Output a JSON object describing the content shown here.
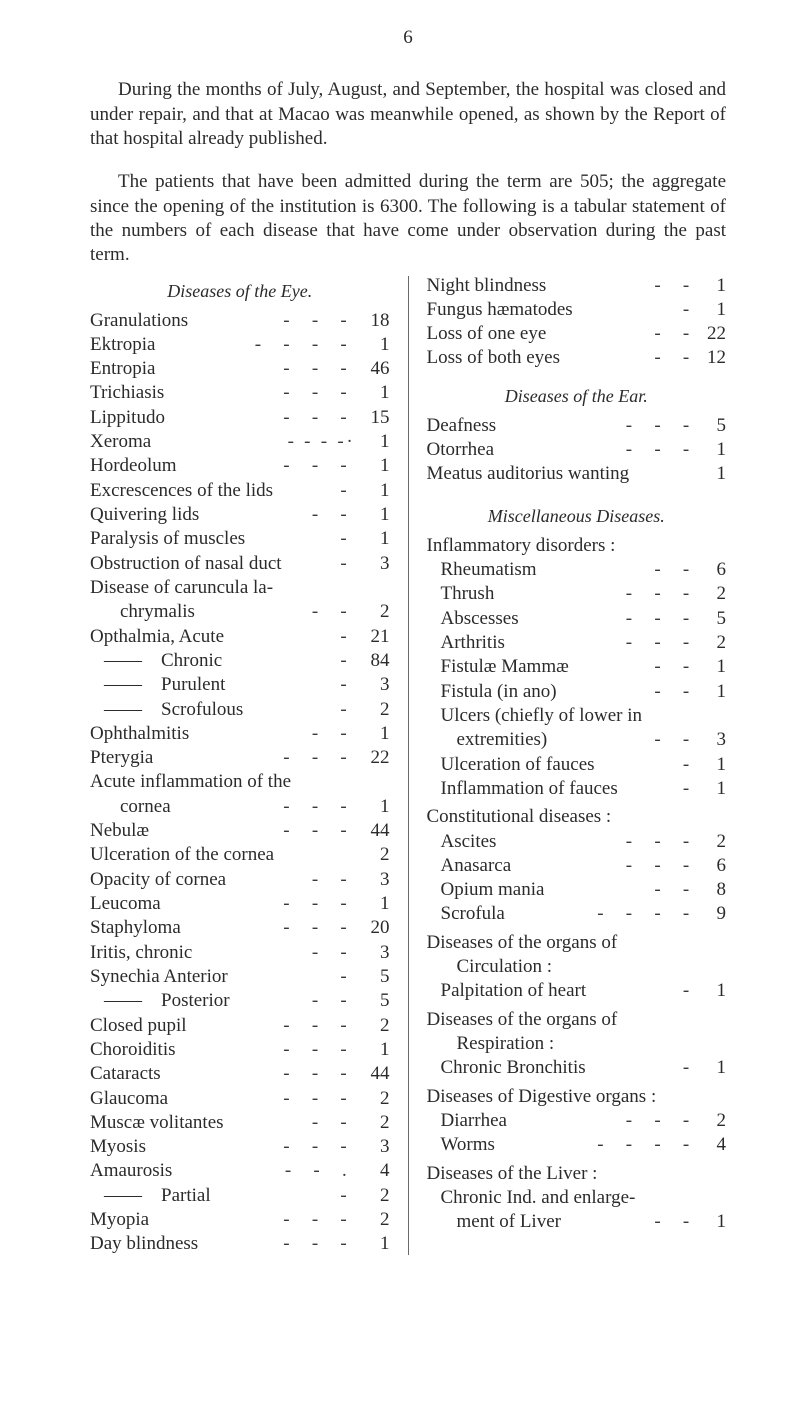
{
  "page_number": "6",
  "paragraphs": [
    "During the months of July, August, and September, the hospital was closed and under repair, and that at Macao was meanwhile opened, as shown by the Report of that hospital already published.",
    "The patients that have been admitted during the term are 505; the aggregate since the opening of the institution is 6300. The following is a tabular statement of the numbers of each disease that have come under observation during the past term."
  ],
  "left": {
    "title": "Diseases of the Eye.",
    "items": [
      {
        "label": "Granulations",
        "dashes": "-   -   -",
        "value": "18"
      },
      {
        "label": "Ektropia",
        "dashes": "-   -   -   -",
        "value": "1"
      },
      {
        "label": "Entropia",
        "dashes": "-   -   -",
        "value": "46"
      },
      {
        "label": "Trichiasis",
        "dashes": "-   -   -",
        "value": "1"
      },
      {
        "label": "Lippitudo",
        "dashes": "-   -   -",
        "value": "15"
      },
      {
        "label": "Xeroma",
        "dashes": "-   -   -   - ·",
        "value": "1"
      },
      {
        "label": "Hordeolum",
        "dashes": "-   -   -",
        "value": "1"
      },
      {
        "label": "Excrescences of the lids",
        "dashes": "-",
        "value": "1"
      },
      {
        "label": "Quivering lids",
        "dashes": "-   -",
        "value": "1"
      },
      {
        "label": "Paralysis of muscles",
        "dashes": "-",
        "value": "1"
      },
      {
        "label": "Obstruction of nasal duct",
        "dashes": "-",
        "value": "3"
      },
      {
        "label": "Disease of caruncula la-",
        "dashes": "",
        "value": ""
      },
      {
        "label": "chrymalis",
        "dashes": "-   -",
        "value": "2",
        "indent": 1
      },
      {
        "label": "Opthalmia, Acute",
        "dashes": "-",
        "value": "21"
      },
      {
        "label": "——    Chronic",
        "dashes": "-",
        "value": "84",
        "indent": 2
      },
      {
        "label": "——    Purulent",
        "dashes": "-",
        "value": "3",
        "indent": 2
      },
      {
        "label": "——    Scrofulous",
        "dashes": "-",
        "value": "2",
        "indent": 2
      },
      {
        "label": "Ophthalmitis",
        "dashes": "-   -",
        "value": "1"
      },
      {
        "label": "Pterygia",
        "dashes": "-   -   -",
        "value": "22"
      },
      {
        "label": "Acute inflammation of the",
        "dashes": "",
        "value": ""
      },
      {
        "label": "cornea",
        "dashes": "-   -   -",
        "value": "1",
        "indent": 1
      },
      {
        "label": "Nebulæ",
        "dashes": "-   -   -",
        "value": "44"
      },
      {
        "label": "Ulceration of the cornea",
        "dashes": "",
        "value": "2"
      },
      {
        "label": "Opacity of cornea",
        "dashes": "-   -",
        "value": "3"
      },
      {
        "label": "Leucoma",
        "dashes": "-   -   -",
        "value": "1"
      },
      {
        "label": "Staphyloma",
        "dashes": "-   -   -",
        "value": "20"
      },
      {
        "label": "Iritis, chronic",
        "dashes": "-   -",
        "value": "3"
      },
      {
        "label": "Synechia Anterior",
        "dashes": "-",
        "value": "5"
      },
      {
        "label": "——    Posterior",
        "dashes": "-   -",
        "value": "5",
        "indent": 2
      },
      {
        "label": "Closed pupil",
        "dashes": "-   -   -",
        "value": "2"
      },
      {
        "label": "Choroiditis",
        "dashes": "-   -   -",
        "value": "1"
      },
      {
        "label": "Cataracts",
        "dashes": "-   -   -",
        "value": "44"
      },
      {
        "label": "Glaucoma",
        "dashes": "-   -   -",
        "value": "2"
      },
      {
        "label": "Muscæ volitantes",
        "dashes": "-   -",
        "value": "2"
      },
      {
        "label": "Myosis",
        "dashes": "-   -   -",
        "value": "3"
      },
      {
        "label": "Amaurosis",
        "dashes": "-   -   .",
        "value": "4"
      },
      {
        "label": "——    Partial",
        "dashes": "-",
        "value": "2",
        "indent": 2
      },
      {
        "label": "Myopia",
        "dashes": "-   -   -",
        "value": "2"
      },
      {
        "label": "Day blindness",
        "dashes": "-   -   -",
        "value": "1"
      }
    ]
  },
  "right": {
    "pre_items": [
      {
        "label": "Night blindness",
        "dashes": "-   -",
        "value": "1"
      },
      {
        "label": "Fungus hæmatodes",
        "dashes": "-",
        "value": "1"
      },
      {
        "label": "Loss of one eye",
        "dashes": "-   -",
        "value": "22"
      },
      {
        "label": "Loss of both eyes",
        "dashes": "-   -",
        "value": "12"
      }
    ],
    "ear_title": "Diseases of the Ear.",
    "ear_items": [
      {
        "label": "Deafness",
        "dashes": "-   -   -",
        "value": "5"
      },
      {
        "label": "Otorrhea",
        "dashes": "-   -   -",
        "value": "1"
      },
      {
        "label": "Meatus auditorius wanting",
        "dashes": "",
        "value": "1"
      }
    ],
    "misc_title": "Miscellaneous Diseases.",
    "misc_sections": [
      {
        "heading": "Inflammatory disorders :",
        "items": [
          {
            "label": "Rheumatism",
            "dashes": "-   -",
            "value": "6"
          },
          {
            "label": "Thrush",
            "dashes": "-   -   -",
            "value": "2"
          },
          {
            "label": "Abscesses",
            "dashes": "-   -   -",
            "value": "5"
          },
          {
            "label": "Arthritis",
            "dashes": "-   -   -",
            "value": "2"
          },
          {
            "label": "Fistulæ Mammæ",
            "dashes": "-   -",
            "value": "1"
          },
          {
            "label": "Fistula (in ano)",
            "dashes": "-   -",
            "value": "1"
          },
          {
            "label": "Ulcers (chiefly of lower in",
            "dashes": "",
            "value": ""
          },
          {
            "label": "extremities)",
            "dashes": "-   -",
            "value": "3",
            "indent": 1
          },
          {
            "label": "Ulceration of fauces",
            "dashes": "-",
            "value": "1"
          },
          {
            "label": "Inflammation of fauces",
            "dashes": "-",
            "value": "1"
          }
        ]
      },
      {
        "heading": "Constitutional diseases :",
        "items": [
          {
            "label": "Ascites",
            "dashes": "-   -   -",
            "value": "2"
          },
          {
            "label": "Anasarca",
            "dashes": "-   -   -",
            "value": "6"
          },
          {
            "label": "Opium mania",
            "dashes": "-   -",
            "value": "8"
          },
          {
            "label": "Scrofula",
            "dashes": "-   -   -   -",
            "value": "9"
          }
        ]
      },
      {
        "heading": "Diseases of the organs of",
        "heading2": "Circulation :",
        "items": [
          {
            "label": "Palpitation of heart",
            "dashes": "-",
            "value": "1"
          }
        ]
      },
      {
        "heading": "Diseases of the organs of",
        "heading2": "Respiration :",
        "items": [
          {
            "label": "Chronic Bronchitis",
            "dashes": "-",
            "value": "1"
          }
        ]
      },
      {
        "heading": "Diseases of Digestive organs :",
        "items": [
          {
            "label": "Diarrhea",
            "dashes": "-   -   -",
            "value": "2"
          },
          {
            "label": "Worms",
            "dashes": "-   -   -   -",
            "value": "4"
          }
        ]
      },
      {
        "heading": "Diseases of the Liver :",
        "items": [
          {
            "label": "Chronic Ind. and enlarge-",
            "dashes": "",
            "value": ""
          },
          {
            "label": "ment of Liver",
            "dashes": "-   -",
            "value": "1",
            "indent": 1
          }
        ]
      }
    ]
  }
}
